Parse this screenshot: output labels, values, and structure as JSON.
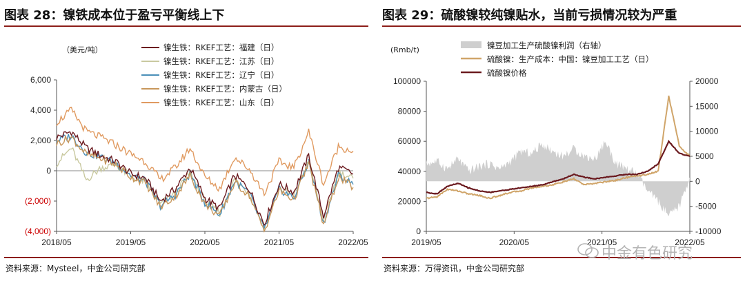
{
  "left": {
    "title": "图表 28：镍铁成本位于盈亏平衡线上下",
    "source": "资料来源：Mysteel，中金公司研究部"
  },
  "right": {
    "title": "图表 29：硫酸镍较纯镍贴水，当前亏损情况较为严重",
    "source": "资料来源：万得资讯，中金公司研究部"
  },
  "watermark": "中金有色研究",
  "chart_data": [
    {
      "type": "line",
      "unit_label": "（美元/吨）",
      "x_ticks": [
        "2018/05",
        "2019/05",
        "2020/05",
        "2021/05",
        "2022/05"
      ],
      "y_ticks": [
        "6,000",
        "4,000",
        "2,000",
        "0",
        "(2,000)",
        "(4,000)"
      ],
      "ylim": [
        -4000,
        6000
      ],
      "x_range": [
        "2018/05",
        "2022/05"
      ],
      "zero_line": true,
      "legend_position": "top-right",
      "series": [
        {
          "name": "镍生铁：RKEF工艺：福建（日）",
          "color": "#6b1a1f",
          "values": [
            2200,
            2600,
            1500,
            1000,
            600,
            -200,
            -500,
            -2000,
            -1200,
            200,
            -1800,
            -2500,
            -300,
            -1200,
            -3500,
            -900,
            -1400,
            1000,
            -3000,
            200,
            -200
          ]
        },
        {
          "name": "镍生铁：RKEF工艺：江苏（日）",
          "color": "#c9c9a0",
          "values": [
            500,
            1500,
            -600,
            200,
            400,
            -400,
            -700,
            -2200,
            -1500,
            -100,
            -2000,
            -2800,
            -600,
            -1500,
            -3800,
            -1100,
            -1700,
            700,
            -3300,
            -100,
            -500
          ]
        },
        {
          "name": "镍生铁：RKEF工艺：辽宁（日）",
          "color": "#4a8fb8",
          "values": [
            2000,
            2300,
            1200,
            900,
            500,
            -300,
            -700,
            -2300,
            -1600,
            -200,
            -2100,
            -2900,
            -700,
            -1500,
            -3900,
            -1200,
            -1800,
            600,
            -3500,
            -300,
            -900
          ]
        },
        {
          "name": "镍生铁：RKEF工艺：内蒙古（日）",
          "color": "#c8965a",
          "values": [
            1800,
            2200,
            1100,
            800,
            400,
            -400,
            -800,
            -2400,
            -1700,
            -300,
            -2200,
            -3000,
            -800,
            -1600,
            -4000,
            -1300,
            -1900,
            500,
            -3600,
            -400,
            -1100
          ]
        },
        {
          "name": "镍生铁：RKEF工艺：山东（日）",
          "color": "#e09a60",
          "values": [
            3200,
            4000,
            2600,
            2200,
            1700,
            1100,
            600,
            -600,
            200,
            1500,
            -400,
            -1200,
            900,
            100,
            -1500,
            600,
            200,
            2600,
            -900,
            1600,
            1300
          ]
        }
      ]
    },
    {
      "type": "line",
      "left_unit": "(Rmb/t)",
      "x_ticks": [
        "2019/05",
        "2020/05",
        "2021/05",
        "2022/05"
      ],
      "y_ticks_left": [
        "100000",
        "80000",
        "60000",
        "40000",
        "20000",
        "0"
      ],
      "y_ticks_right": [
        "20000",
        "15000",
        "10000",
        "5000",
        "0",
        "-5000",
        "-10000"
      ],
      "ylim_left": [
        0,
        100000
      ],
      "ylim_right": [
        -10000,
        20000
      ],
      "legend_position": "top-left",
      "series": [
        {
          "name": "镍豆加工生产硫酸镍利润（右轴）",
          "color": "#cfcfcf",
          "axis": "right",
          "kind": "area",
          "values": [
            3500,
            4000,
            2500,
            4500,
            2000,
            3000,
            3500,
            2500,
            4000,
            6000,
            5500,
            7500,
            6000,
            5000,
            6500,
            5000,
            4500,
            8000,
            3500,
            2500,
            1500,
            -2000,
            -4000,
            -7000,
            -5000,
            800
          ]
        },
        {
          "name": "硫酸镍：生产成本：中国：镍豆加工工艺（日）",
          "color": "#d0a56a",
          "axis": "left",
          "values": [
            22000,
            23000,
            28000,
            27000,
            25000,
            24000,
            22000,
            24000,
            26000,
            27000,
            29000,
            30000,
            31000,
            33000,
            35000,
            31000,
            32000,
            33000,
            34000,
            36000,
            37000,
            38000,
            40000,
            90000,
            57000,
            50000
          ]
        },
        {
          "name": "硫酸镍价格",
          "color": "#6b1a1f",
          "axis": "left",
          "values": [
            26000,
            25000,
            30000,
            32000,
            29000,
            27000,
            26000,
            27000,
            28000,
            29000,
            30000,
            31000,
            33000,
            35000,
            38000,
            36000,
            35000,
            36000,
            37000,
            38000,
            38000,
            40000,
            45000,
            60000,
            52000,
            50000
          ]
        }
      ]
    }
  ]
}
